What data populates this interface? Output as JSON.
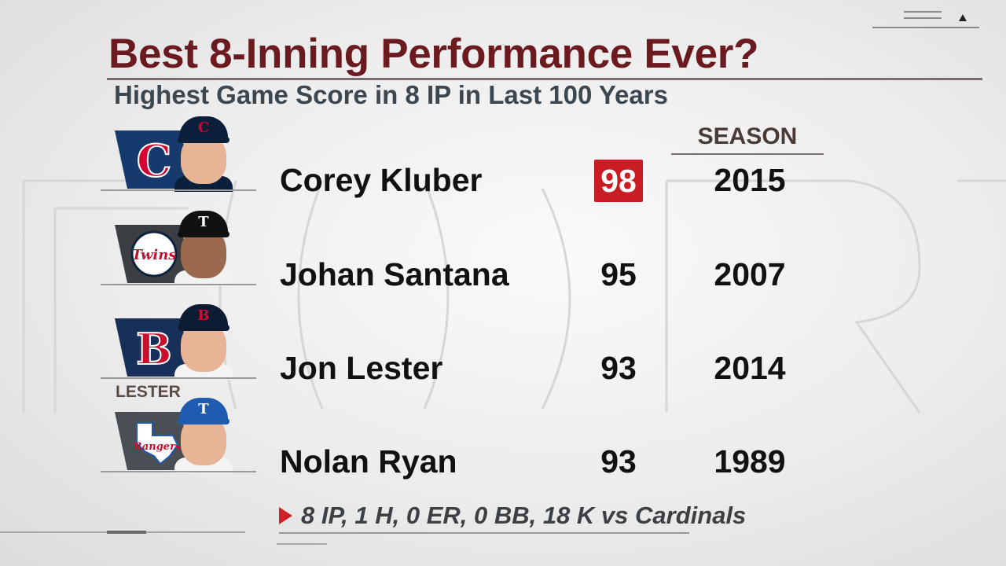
{
  "title": "Best 8-Inning Performance Ever?",
  "subtitle": "Highest Game Score in 8 IP in Last 100 Years",
  "season_header": "SEASON",
  "rows": [
    {
      "name": "Corey Kluber",
      "score": "98",
      "season": "2015",
      "highlighted": true,
      "team_logo": "cleveland-c-logo",
      "cap_color": "#0b1f3a",
      "cap_mark": "C",
      "cap_mark_color": "#d50032",
      "panel_color": "#163a6b"
    },
    {
      "name": "Johan Santana",
      "score": "95",
      "season": "2007",
      "highlighted": false,
      "team_logo": "minnesota-twins-logo",
      "cap_color": "#111111",
      "cap_mark": "T",
      "cap_mark_color": "#ffffff",
      "panel_color": "#3b3f44"
    },
    {
      "name": "Jon Lester",
      "score": "93",
      "season": "2014",
      "highlighted": false,
      "team_logo": "boston-b-logo",
      "cap_color": "#0c1c33",
      "cap_mark": "B",
      "cap_mark_color": "#c8102e",
      "panel_color": "#17305a"
    },
    {
      "name": "Nolan Ryan",
      "score": "93",
      "season": "1989",
      "highlighted": false,
      "team_logo": "texas-rangers-logo",
      "cap_color": "#1f5bb0",
      "cap_mark": "T",
      "cap_mark_color": "#ffffff",
      "panel_color": "#4a4f55"
    }
  ],
  "lester_label": "LESTER",
  "footnote": "8 IP, 1 H, 0 ER, 0 BB, 18 K vs Cardinals",
  "colors": {
    "title": "#6b1a1f",
    "highlight": "#c91d23",
    "arrow": "#d01f26"
  }
}
